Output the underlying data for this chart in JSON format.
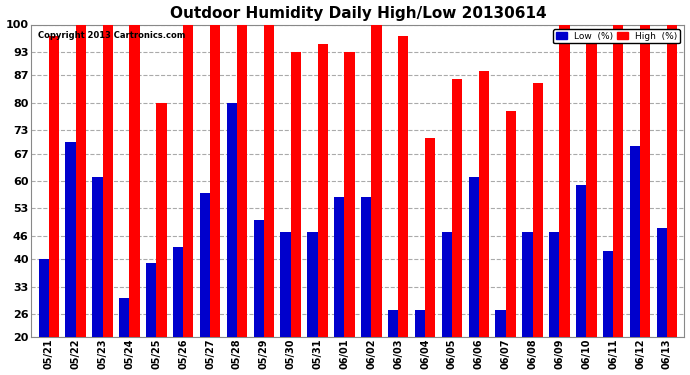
{
  "title": "Outdoor Humidity Daily High/Low 20130614",
  "copyright": "Copyright 2013 Cartronics.com",
  "dates": [
    "05/21",
    "05/22",
    "05/23",
    "05/24",
    "05/25",
    "05/26",
    "05/27",
    "05/28",
    "05/29",
    "05/30",
    "05/31",
    "06/01",
    "06/02",
    "06/03",
    "06/04",
    "06/05",
    "06/06",
    "06/07",
    "06/08",
    "06/09",
    "06/10",
    "06/11",
    "06/12",
    "06/13"
  ],
  "high": [
    97,
    100,
    100,
    100,
    80,
    100,
    100,
    100,
    100,
    93,
    95,
    93,
    100,
    97,
    71,
    86,
    88,
    78,
    85,
    100,
    97,
    100,
    100,
    100
  ],
  "low": [
    40,
    70,
    61,
    30,
    39,
    43,
    57,
    80,
    50,
    47,
    47,
    56,
    56,
    27,
    27,
    47,
    61,
    27,
    47,
    47,
    59,
    42,
    69,
    48
  ],
  "high_color": "#ff0000",
  "low_color": "#0000cc",
  "bg_color": "#ffffff",
  "grid_color": "#aaaaaa",
  "ymin": 20,
  "ymax": 100,
  "yticks": [
    20,
    26,
    33,
    40,
    46,
    53,
    60,
    67,
    73,
    80,
    87,
    93,
    100
  ],
  "bar_width": 0.38,
  "title_fontsize": 11,
  "legend_labels": [
    "Low  (%)",
    "High  (%)"
  ],
  "legend_colors": [
    "#0000cc",
    "#ff0000"
  ]
}
